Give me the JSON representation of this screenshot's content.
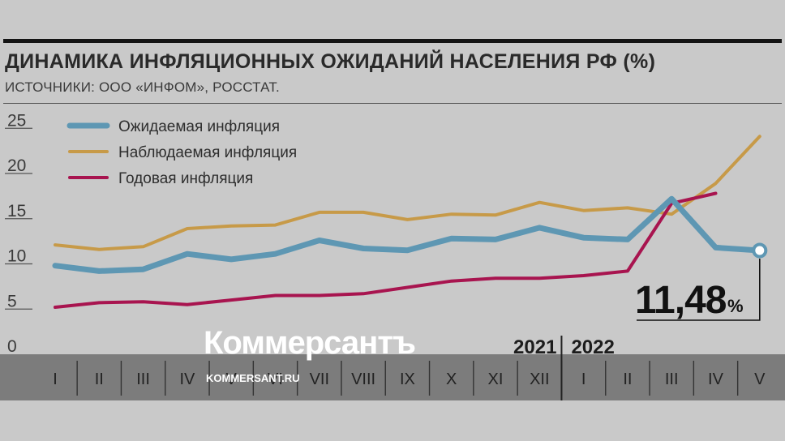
{
  "header": {
    "title": "ДИНАМИКА ИНФЛЯЦИОННЫХ ОЖИДАНИЙ НАСЕЛЕНИЯ РФ (%)",
    "subtitle": "ИСТОЧНИКИ: ООО «ИНФОМ», РОССТАТ."
  },
  "watermark": {
    "brand": "Коммерсантъ",
    "url": "KOMMERSANT.RU"
  },
  "callout": {
    "value": "11,48",
    "unit": "%"
  },
  "colors": {
    "expected": "#5e97b3",
    "observed": "#c79a48",
    "annual": "#a8144f",
    "axis_band": "#7c7c7c",
    "background": "#c9c9c9"
  },
  "chart_data": {
    "type": "line",
    "title": "ДИНАМИКА ИНФЛЯЦИОННЫХ ОЖИДАНИЙ НАСЕЛЕНИЯ РФ (%)",
    "ylim": [
      0,
      25
    ],
    "yticks": [
      "0",
      "5",
      "10",
      "15",
      "20",
      "25"
    ],
    "grid": false,
    "legend_position": "top-left",
    "years": [
      "2021",
      "2022"
    ],
    "categories": [
      "I",
      "II",
      "III",
      "IV",
      "V",
      "VI",
      "VII",
      "VIII",
      "IX",
      "X",
      "XI",
      "XII",
      "I",
      "II",
      "III",
      "IV",
      "V"
    ],
    "series": [
      {
        "name": "Ожидаемая инфляция",
        "key": "expected",
        "values": [
          9.8,
          9.2,
          9.4,
          11.1,
          10.5,
          11.1,
          12.6,
          11.7,
          11.5,
          12.8,
          12.7,
          14.0,
          12.9,
          12.7,
          17.2,
          11.8,
          11.48
        ]
      },
      {
        "name": "Наблюдаемая инфляция",
        "key": "observed",
        "values": [
          12.1,
          11.6,
          11.9,
          13.9,
          14.2,
          14.3,
          15.7,
          15.7,
          14.9,
          15.5,
          15.4,
          16.8,
          15.9,
          16.2,
          15.5,
          18.9,
          24.1
        ]
      },
      {
        "name": "Годовая инфляция",
        "key": "annual",
        "values": [
          5.2,
          5.7,
          5.8,
          5.5,
          6.0,
          6.5,
          6.5,
          6.7,
          7.4,
          8.1,
          8.4,
          8.4,
          8.7,
          9.2,
          16.7,
          17.8,
          null
        ]
      }
    ]
  }
}
